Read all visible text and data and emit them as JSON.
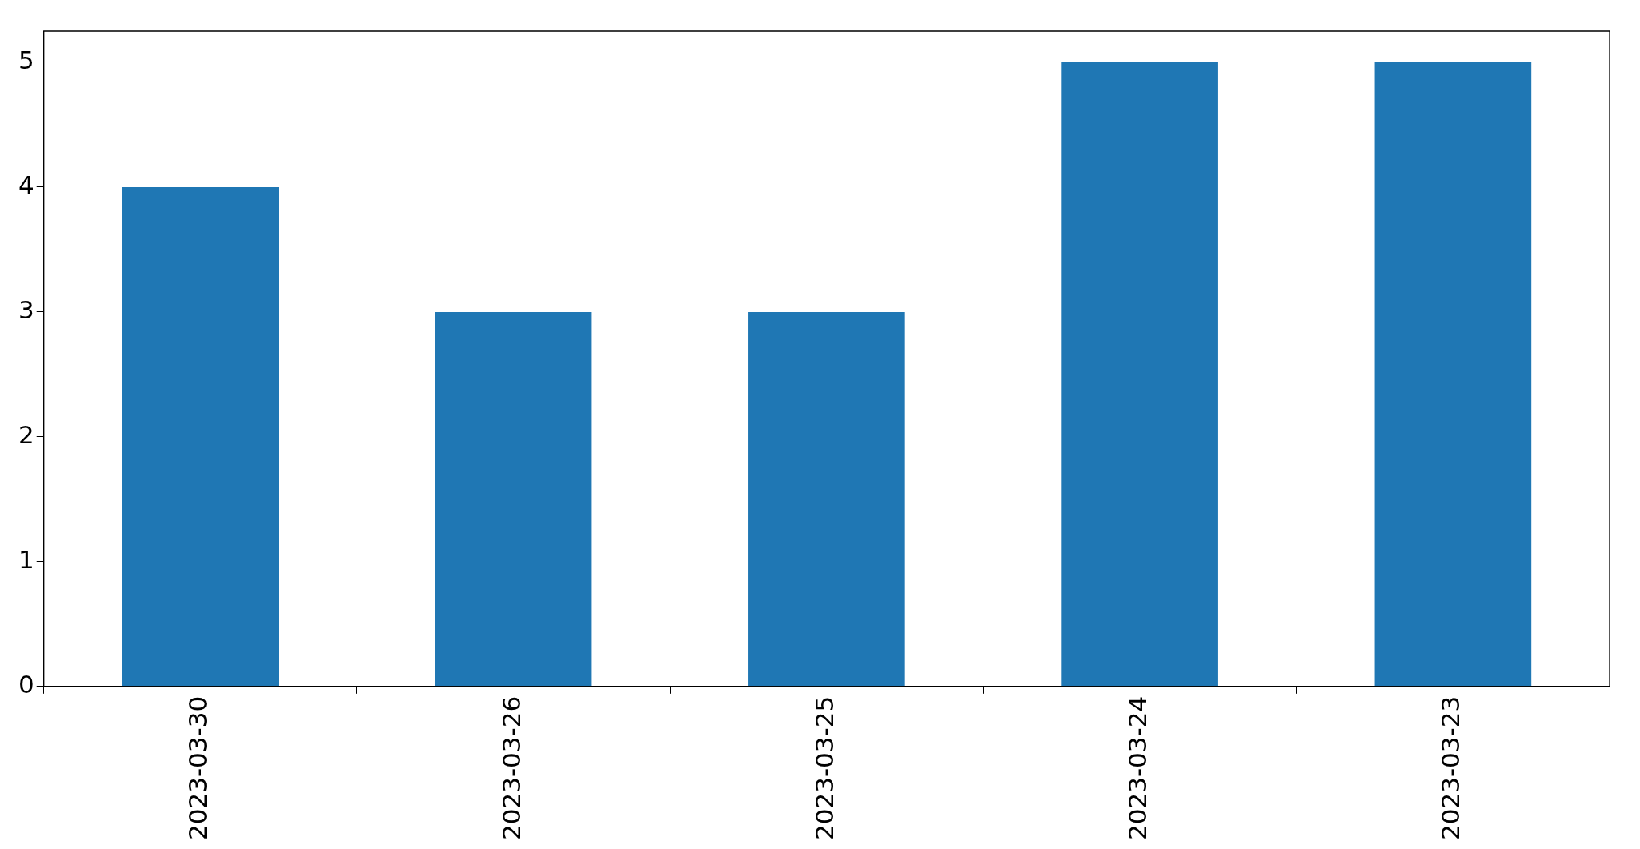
{
  "chart_data": {
    "type": "bar",
    "categories": [
      "2023-03-30",
      "2023-03-26",
      "2023-03-25",
      "2023-03-24",
      "2023-03-23"
    ],
    "values": [
      4,
      3,
      3,
      5,
      5
    ],
    "color": "#1f77b4",
    "ylim": [
      0,
      5.25
    ],
    "yticks": [
      0,
      1,
      2,
      3,
      4,
      5
    ],
    "grid": false,
    "legend": false
  }
}
